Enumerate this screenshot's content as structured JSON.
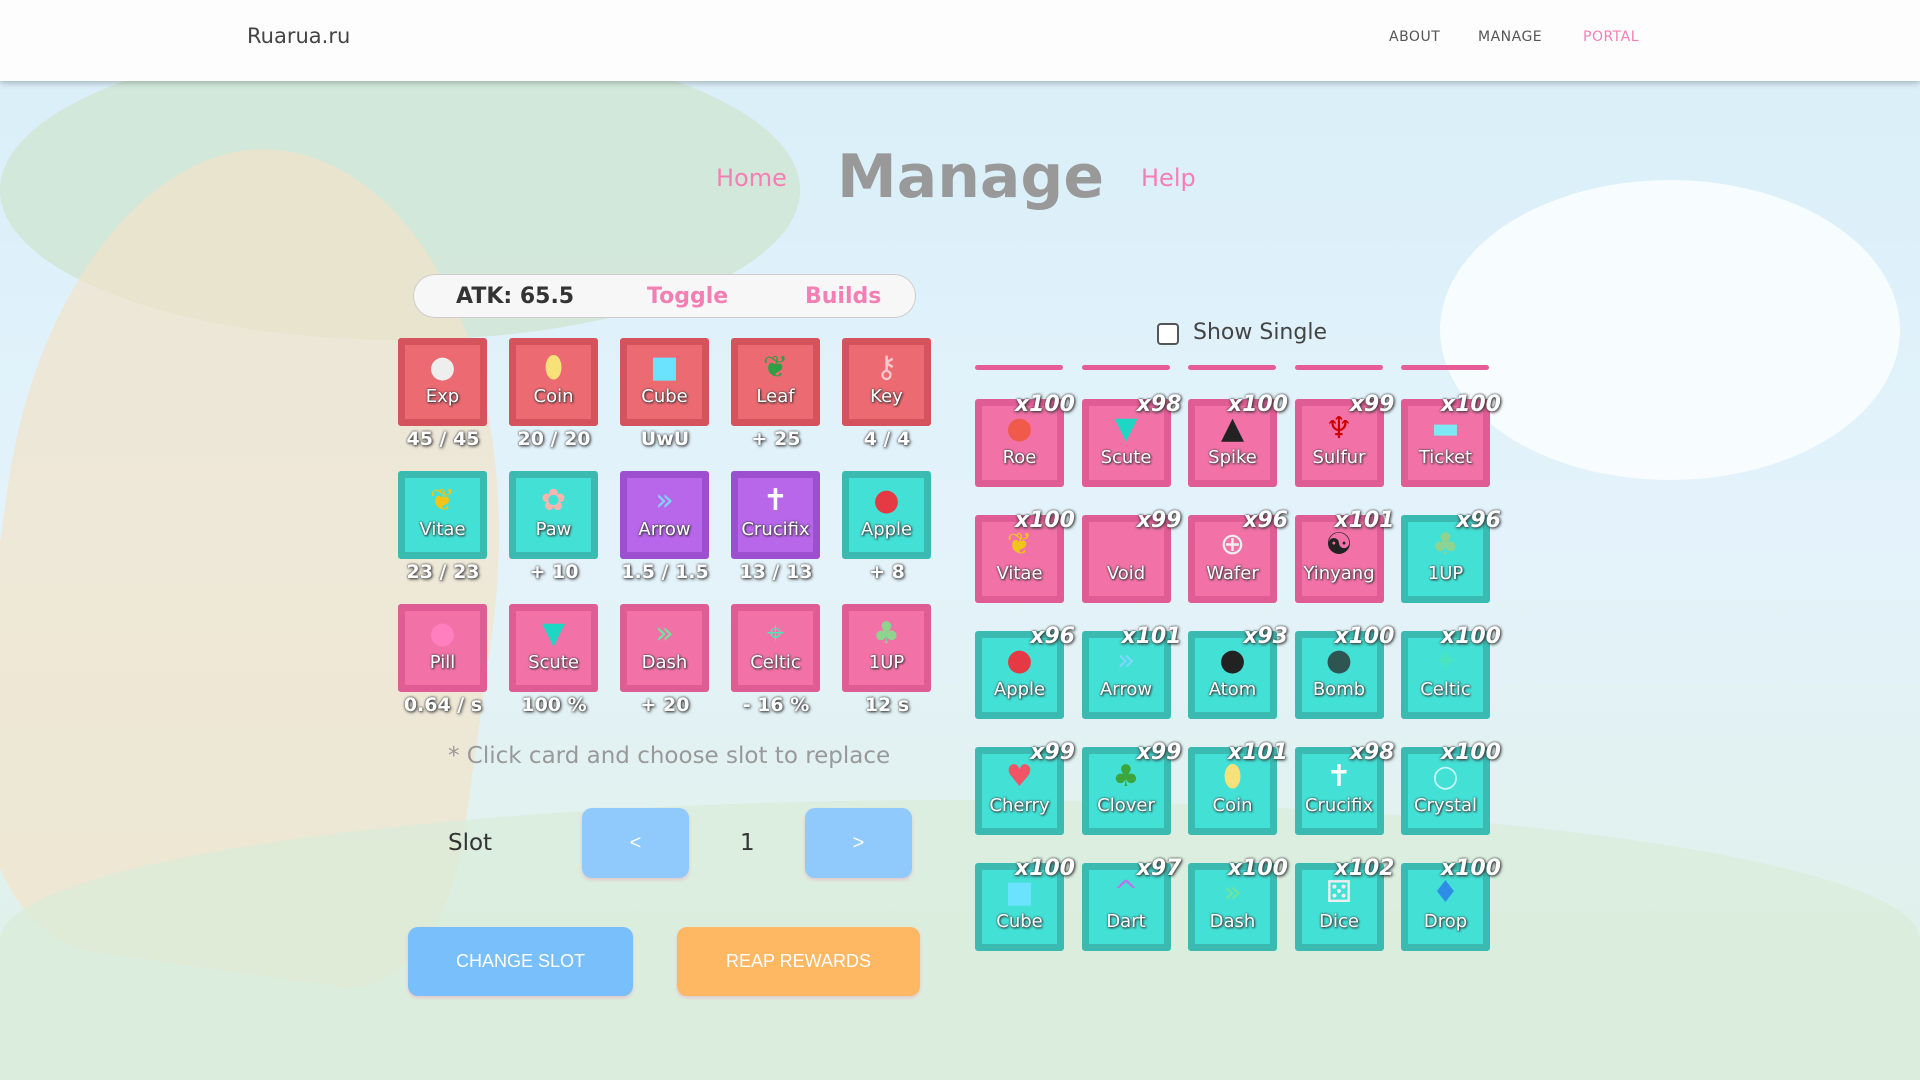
{
  "header": {
    "logo": "Ruarua.ru",
    "nav": [
      {
        "label": "ABOUT",
        "color": "#555555"
      },
      {
        "label": "MANAGE",
        "color": "#555555"
      },
      {
        "label": "PORTAL",
        "color": "#f47fb5"
      }
    ]
  },
  "title_row": {
    "home": "Home",
    "title": "Manage",
    "help": "Help"
  },
  "stats_bar": {
    "atk": "ATK: 65.5",
    "toggle": "Toggle",
    "builds": "Builds"
  },
  "equipped": [
    {
      "label": "Exp",
      "value": "45 / 45",
      "color": "red",
      "icon": "orb-icon"
    },
    {
      "label": "Coin",
      "value": "20 / 20",
      "color": "red",
      "icon": "coin-icon"
    },
    {
      "label": "Cube",
      "value": "UwU",
      "color": "red",
      "icon": "cube-icon"
    },
    {
      "label": "Leaf",
      "value": "+ 25",
      "color": "red",
      "icon": "leaf-icon"
    },
    {
      "label": "Key",
      "value": "4 / 4",
      "color": "red",
      "icon": "key-icon"
    },
    {
      "label": "Vitae",
      "value": "23 / 23",
      "color": "teal",
      "icon": "vitae-leaf-icon"
    },
    {
      "label": "Paw",
      "value": "+ 10",
      "color": "teal",
      "icon": "paw-icon"
    },
    {
      "label": "Arrow",
      "value": "1.5 / 1.5",
      "color": "purple",
      "icon": "double-chevron-icon"
    },
    {
      "label": "Crucifix",
      "value": "13 / 13",
      "color": "purple",
      "icon": "cross-icon"
    },
    {
      "label": "Apple",
      "value": "+ 8",
      "color": "teal",
      "icon": "apple-icon"
    },
    {
      "label": "Pill",
      "value": "0.64 / s",
      "color": "pink",
      "icon": "pill-icon"
    },
    {
      "label": "Scute",
      "value": "100 %",
      "color": "pink",
      "icon": "scute-icon"
    },
    {
      "label": "Dash",
      "value": "+ 20",
      "color": "pink",
      "icon": "dash-icon"
    },
    {
      "label": "Celtic",
      "value": "- 16 %",
      "color": "pink",
      "icon": "celtic-cross-icon"
    },
    {
      "label": "1UP",
      "value": "12 s",
      "color": "pink",
      "icon": "mushroom-icon"
    }
  ],
  "hint": "* Click card and choose slot to replace",
  "slot": {
    "label": "Slot",
    "prev": "<",
    "value": "1",
    "next": ">"
  },
  "actions": {
    "change_slot": "CHANGE SLOT",
    "reap_rewards": "REAP REWARDS"
  },
  "inventory": {
    "show_single_label": "Show Single",
    "show_single_checked": false,
    "items": [
      {
        "label": "Roe",
        "count": "x100",
        "color": "pink",
        "icon": "roe-icon"
      },
      {
        "label": "Scute",
        "count": "x98",
        "color": "pink",
        "icon": "scute-icon"
      },
      {
        "label": "Spike",
        "count": "x100",
        "color": "pink",
        "icon": "spike-icon"
      },
      {
        "label": "Sulfur",
        "count": "x99",
        "color": "pink",
        "icon": "sulfur-icon"
      },
      {
        "label": "Ticket",
        "count": "x100",
        "color": "pink",
        "icon": "ticket-icon"
      },
      {
        "label": "Vitae",
        "count": "x100",
        "color": "pink",
        "icon": "vitae-leaf-icon"
      },
      {
        "label": "Void",
        "count": "x99",
        "color": "pink",
        "icon": "void-icon"
      },
      {
        "label": "Wafer",
        "count": "x96",
        "color": "pink",
        "icon": "wafer-icon"
      },
      {
        "label": "Yinyang",
        "count": "x101",
        "color": "pink",
        "icon": "yinyang-icon"
      },
      {
        "label": "1UP",
        "count": "x96",
        "color": "teal",
        "icon": "mushroom-icon"
      },
      {
        "label": "Apple",
        "count": "x96",
        "color": "teal",
        "icon": "apple-icon"
      },
      {
        "label": "Arrow",
        "count": "x101",
        "color": "teal",
        "icon": "double-chevron-icon"
      },
      {
        "label": "Atom",
        "count": "x93",
        "color": "teal",
        "icon": "atom-icon"
      },
      {
        "label": "Bomb",
        "count": "x100",
        "color": "teal",
        "icon": "bomb-icon"
      },
      {
        "label": "Celtic",
        "count": "x100",
        "color": "teal",
        "icon": "celtic-cross-icon"
      },
      {
        "label": "Cherry",
        "count": "x99",
        "color": "teal",
        "icon": "cherry-icon"
      },
      {
        "label": "Clover",
        "count": "x99",
        "color": "teal",
        "icon": "clover-icon"
      },
      {
        "label": "Coin",
        "count": "x101",
        "color": "teal",
        "icon": "coin-icon"
      },
      {
        "label": "Crucifix",
        "count": "x98",
        "color": "teal",
        "icon": "cross-icon"
      },
      {
        "label": "Crystal",
        "count": "x100",
        "color": "teal",
        "icon": "crystal-icon"
      },
      {
        "label": "Cube",
        "count": "x100",
        "color": "teal",
        "icon": "cube-icon"
      },
      {
        "label": "Dart",
        "count": "x97",
        "color": "teal",
        "icon": "dart-icon"
      },
      {
        "label": "Dash",
        "count": "x100",
        "color": "teal",
        "icon": "dash-icon"
      },
      {
        "label": "Dice",
        "count": "x102",
        "color": "teal",
        "icon": "dice-icon"
      },
      {
        "label": "Drop",
        "count": "x100",
        "color": "teal",
        "icon": "drop-icon"
      }
    ]
  }
}
